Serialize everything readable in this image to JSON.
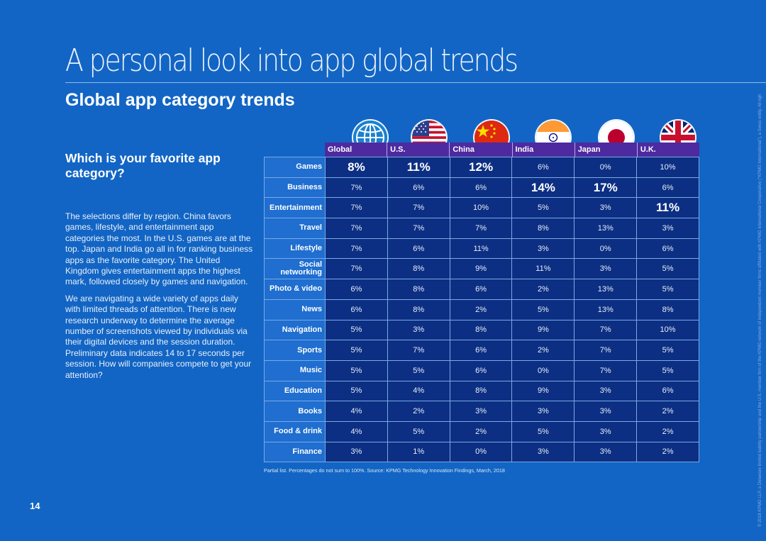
{
  "page": {
    "title": "A personal look into app global trends",
    "subtitle": "Global app category trends",
    "question": "Which is your favorite app category?",
    "paragraphs": [
      "The selections differ by region. China favors games, lifestyle, and entertainment app categories the most. In the U.S. games are at the top. Japan and India go all in for ranking business apps as the favorite category. The United Kingdom gives entertainment apps the highest mark, followed closely by games and navigation.",
      "We are navigating a wide variety of apps daily with limited threads of attention. There is new research underway to determine the average number of screenshots viewed by individuals via their digital devices and the session duration. Preliminary data indicates 14 to 17 seconds per session. How will companies compete to get your attention?"
    ],
    "footnote": "Partial list. Percentages do not sum to 100%. Source: KPMG Technology Innovation Findings, March, 2018",
    "page_number": "14",
    "legal": "© 2018 KPMG LLP, a Delaware limited liability partnership and the U.S. member firm of the KPMG network of independent member firms affiliated with KPMG International Cooperative (“KPMG International”), a Swiss entity. All rights reserved."
  },
  "colors": {
    "background": "#1265c4",
    "header_bar": "#4d2aa0",
    "category_cell": "#1f6ed0",
    "value_cell": "#0c2f83"
  },
  "chart_data": {
    "type": "table",
    "columns": [
      "Global",
      "U.S.",
      "China",
      "India",
      "Japan",
      "U.K."
    ],
    "flags": [
      "globe-icon",
      "us-flag-icon",
      "china-flag-icon",
      "india-flag-icon",
      "japan-flag-icon",
      "uk-flag-icon"
    ],
    "rows": [
      {
        "category": "Games",
        "values": [
          "8%",
          "11%",
          "12%",
          "6%",
          "0%",
          "10%"
        ],
        "highlight": [
          0,
          1,
          2
        ]
      },
      {
        "category": "Business",
        "values": [
          "7%",
          "6%",
          "6%",
          "14%",
          "17%",
          "6%"
        ],
        "highlight": [
          3,
          4
        ]
      },
      {
        "category": "Entertainment",
        "values": [
          "7%",
          "7%",
          "10%",
          "5%",
          "3%",
          "11%"
        ],
        "highlight": [
          5
        ]
      },
      {
        "category": "Travel",
        "values": [
          "7%",
          "7%",
          "7%",
          "8%",
          "13%",
          "3%"
        ],
        "highlight": []
      },
      {
        "category": "Lifestyle",
        "values": [
          "7%",
          "6%",
          "11%",
          "3%",
          "0%",
          "6%"
        ],
        "highlight": []
      },
      {
        "category": "Social networking",
        "values": [
          "7%",
          "8%",
          "9%",
          "11%",
          "3%",
          "5%"
        ],
        "highlight": []
      },
      {
        "category": "Photo & video",
        "values": [
          "6%",
          "8%",
          "6%",
          "2%",
          "13%",
          "5%"
        ],
        "highlight": []
      },
      {
        "category": "News",
        "values": [
          "6%",
          "8%",
          "2%",
          "5%",
          "13%",
          "8%"
        ],
        "highlight": []
      },
      {
        "category": "Navigation",
        "values": [
          "5%",
          "3%",
          "8%",
          "9%",
          "7%",
          "10%"
        ],
        "highlight": []
      },
      {
        "category": "Sports",
        "values": [
          "5%",
          "7%",
          "6%",
          "2%",
          "7%",
          "5%"
        ],
        "highlight": []
      },
      {
        "category": "Music",
        "values": [
          "5%",
          "5%",
          "6%",
          "0%",
          "7%",
          "5%"
        ],
        "highlight": []
      },
      {
        "category": "Education",
        "values": [
          "5%",
          "4%",
          "8%",
          "9%",
          "3%",
          "6%"
        ],
        "highlight": []
      },
      {
        "category": "Books",
        "values": [
          "4%",
          "2%",
          "3%",
          "3%",
          "3%",
          "2%"
        ],
        "highlight": []
      },
      {
        "category": "Food & drink",
        "values": [
          "4%",
          "5%",
          "2%",
          "5%",
          "3%",
          "2%"
        ],
        "highlight": []
      },
      {
        "category": "Finance",
        "values": [
          "3%",
          "1%",
          "0%",
          "3%",
          "3%",
          "2%"
        ],
        "highlight": []
      }
    ]
  }
}
